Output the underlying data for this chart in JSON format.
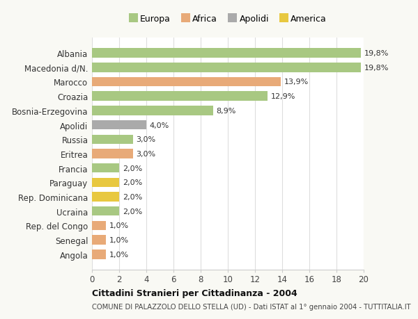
{
  "categories": [
    "Albania",
    "Macedonia d/N.",
    "Marocco",
    "Croazia",
    "Bosnia-Erzegovina",
    "Apolidi",
    "Russia",
    "Eritrea",
    "Francia",
    "Paraguay",
    "Rep. Dominicana",
    "Ucraina",
    "Rep. del Congo",
    "Senegal",
    "Angola"
  ],
  "values": [
    19.8,
    19.8,
    13.9,
    12.9,
    8.9,
    4.0,
    3.0,
    3.0,
    2.0,
    2.0,
    2.0,
    2.0,
    1.0,
    1.0,
    1.0
  ],
  "labels": [
    "19,8%",
    "19,8%",
    "13,9%",
    "12,9%",
    "8,9%",
    "4,0%",
    "3,0%",
    "3,0%",
    "2,0%",
    "2,0%",
    "2,0%",
    "2,0%",
    "1,0%",
    "1,0%",
    "1,0%"
  ],
  "colors": [
    "#a8c882",
    "#a8c882",
    "#e8aa78",
    "#a8c882",
    "#a8c882",
    "#aaaaaa",
    "#a8c882",
    "#e8aa78",
    "#a8c882",
    "#e8c840",
    "#e8c840",
    "#a8c882",
    "#e8aa78",
    "#e8aa78",
    "#e8aa78"
  ],
  "legend_labels": [
    "Europa",
    "Africa",
    "Apolidi",
    "America"
  ],
  "legend_colors": [
    "#a8c882",
    "#e8aa78",
    "#aaaaaa",
    "#e8c840"
  ],
  "title": "Cittadini Stranieri per Cittadinanza - 2004",
  "subtitle": "COMUNE DI PALAZZOLO DELLO STELLA (UD) - Dati ISTAT al 1° gennaio 2004 - TUTTITALIA.IT",
  "xlim": [
    0,
    20
  ],
  "xticks": [
    0,
    2,
    4,
    6,
    8,
    10,
    12,
    14,
    16,
    18,
    20
  ],
  "bg_color": "#f9f9f4",
  "plot_bg_color": "#ffffff",
  "bar_height": 0.65
}
